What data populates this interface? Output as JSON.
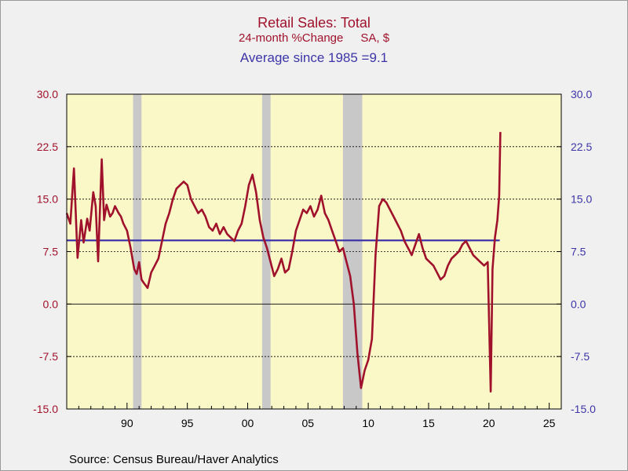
{
  "title": "Retail Sales: Total",
  "subtitle_left": "24-month %Change",
  "subtitle_right": "SA, $",
  "average_label": "Average since 1985 =9.1",
  "source": "Source:  Census Bureau/Haver Analytics",
  "colors": {
    "series": "#a0112c",
    "average": "#3d35a8",
    "plot_background": "#fbf8c8",
    "recession": "#c8c8c8",
    "page_background": "#f0f0f0"
  },
  "chart_data": {
    "type": "line",
    "title": "Retail Sales: Total",
    "subtitle": "24-month %Change    SA, $",
    "xlim": [
      1985,
      2026
    ],
    "ylim": [
      -15,
      30
    ],
    "y_ticks": [
      30,
      22.5,
      15,
      7.5,
      0,
      -7.5,
      -15
    ],
    "y_tick_labels": [
      "30.0",
      "22.5",
      "15.0",
      "7.5",
      "0.0",
      "-7.5",
      "-15.0"
    ],
    "x_ticks": [
      1990,
      1995,
      2000,
      2005,
      2010,
      2015,
      2020,
      2025
    ],
    "x_tick_labels": [
      "90",
      "95",
      "00",
      "05",
      "10",
      "15",
      "20",
      "25"
    ],
    "grid": "horizontal dashed",
    "recessions": [
      [
        1990.5,
        1991.2
      ],
      [
        2001.2,
        2001.9
      ],
      [
        2007.9,
        2009.5
      ]
    ],
    "average": {
      "label": "Average since 1985 =9.1",
      "value": 9.1,
      "from": 1985,
      "to": 2020.9
    },
    "series": [
      {
        "x": [
          1985.0,
          1985.3,
          1985.6,
          1985.9,
          1986.2,
          1986.4,
          1986.7,
          1986.9,
          1987.2,
          1987.4,
          1987.6,
          1987.9,
          1988.1,
          1988.3,
          1988.6,
          1988.8,
          1989.0,
          1989.3,
          1989.5,
          1989.7,
          1990.0,
          1990.3,
          1990.6,
          1990.8,
          1991.0,
          1991.2,
          1991.4,
          1991.7,
          1992.0,
          1992.3,
          1992.6,
          1992.9,
          1993.2,
          1993.5,
          1993.8,
          1994.1,
          1994.4,
          1994.7,
          1995.0,
          1995.3,
          1995.6,
          1995.9,
          1996.2,
          1996.5,
          1996.8,
          1997.1,
          1997.4,
          1997.7,
          1998.0,
          1998.3,
          1998.6,
          1998.9,
          1999.2,
          1999.5,
          1999.8,
          2000.1,
          2000.4,
          2000.7,
          2001.0,
          2001.3,
          2001.6,
          2001.9,
          2002.2,
          2002.5,
          2002.8,
          2003.1,
          2003.4,
          2003.7,
          2004.0,
          2004.3,
          2004.6,
          2004.9,
          2005.2,
          2005.5,
          2005.8,
          2006.1,
          2006.4,
          2006.7,
          2007.0,
          2007.3,
          2007.6,
          2007.9,
          2008.2,
          2008.5,
          2008.8,
          2009.1,
          2009.4,
          2009.7,
          2010.0,
          2010.3,
          2010.6,
          2010.9,
          2011.2,
          2011.5,
          2011.8,
          2012.1,
          2012.4,
          2012.7,
          2013.0,
          2013.3,
          2013.6,
          2013.9,
          2014.2,
          2014.5,
          2014.8,
          2015.1,
          2015.4,
          2015.7,
          2016.0,
          2016.3,
          2016.6,
          2016.9,
          2017.2,
          2017.5,
          2017.8,
          2018.1,
          2018.4,
          2018.7,
          2019.0,
          2019.3,
          2019.6,
          2019.9,
          2020.15,
          2020.3,
          2020.5,
          2020.7,
          2020.85,
          2020.95
        ],
        "values": [
          13.0,
          11.5,
          19.4,
          6.6,
          12.0,
          8.8,
          12.2,
          10.5,
          16.0,
          14.0,
          6.1,
          20.7,
          12.0,
          14.2,
          12.5,
          13.0,
          14.0,
          13.0,
          12.5,
          11.5,
          10.5,
          8.0,
          5.0,
          4.3,
          6.0,
          3.5,
          3.0,
          2.3,
          4.5,
          5.5,
          6.5,
          9.0,
          11.5,
          13.0,
          15.0,
          16.5,
          17.0,
          17.5,
          17.0,
          15.0,
          14.0,
          13.0,
          13.5,
          12.5,
          11.0,
          10.5,
          11.5,
          10.0,
          11.0,
          10.0,
          9.5,
          9.0,
          10.5,
          11.5,
          14.0,
          17.0,
          18.5,
          16.0,
          12.0,
          9.5,
          8.0,
          6.0,
          4.0,
          5.0,
          6.5,
          4.5,
          5.0,
          7.5,
          10.5,
          12.0,
          13.5,
          13.0,
          14.0,
          12.5,
          13.5,
          15.5,
          13.0,
          12.0,
          10.5,
          9.0,
          7.5,
          8.0,
          6.0,
          4.0,
          0.0,
          -7.0,
          -12.0,
          -9.5,
          -8.0,
          -5.0,
          7.0,
          14.0,
          15.0,
          14.5,
          13.5,
          12.5,
          11.5,
          10.5,
          9.0,
          8.0,
          7.0,
          8.5,
          10.0,
          8.0,
          6.5,
          6.0,
          5.5,
          4.5,
          3.5,
          4.0,
          5.5,
          6.5,
          7.0,
          7.5,
          8.5,
          9.0,
          8.0,
          7.0,
          6.5,
          6.0,
          5.5,
          6.0,
          -12.5,
          5.0,
          9.5,
          12.0,
          15.5,
          24.6
        ]
      }
    ]
  }
}
